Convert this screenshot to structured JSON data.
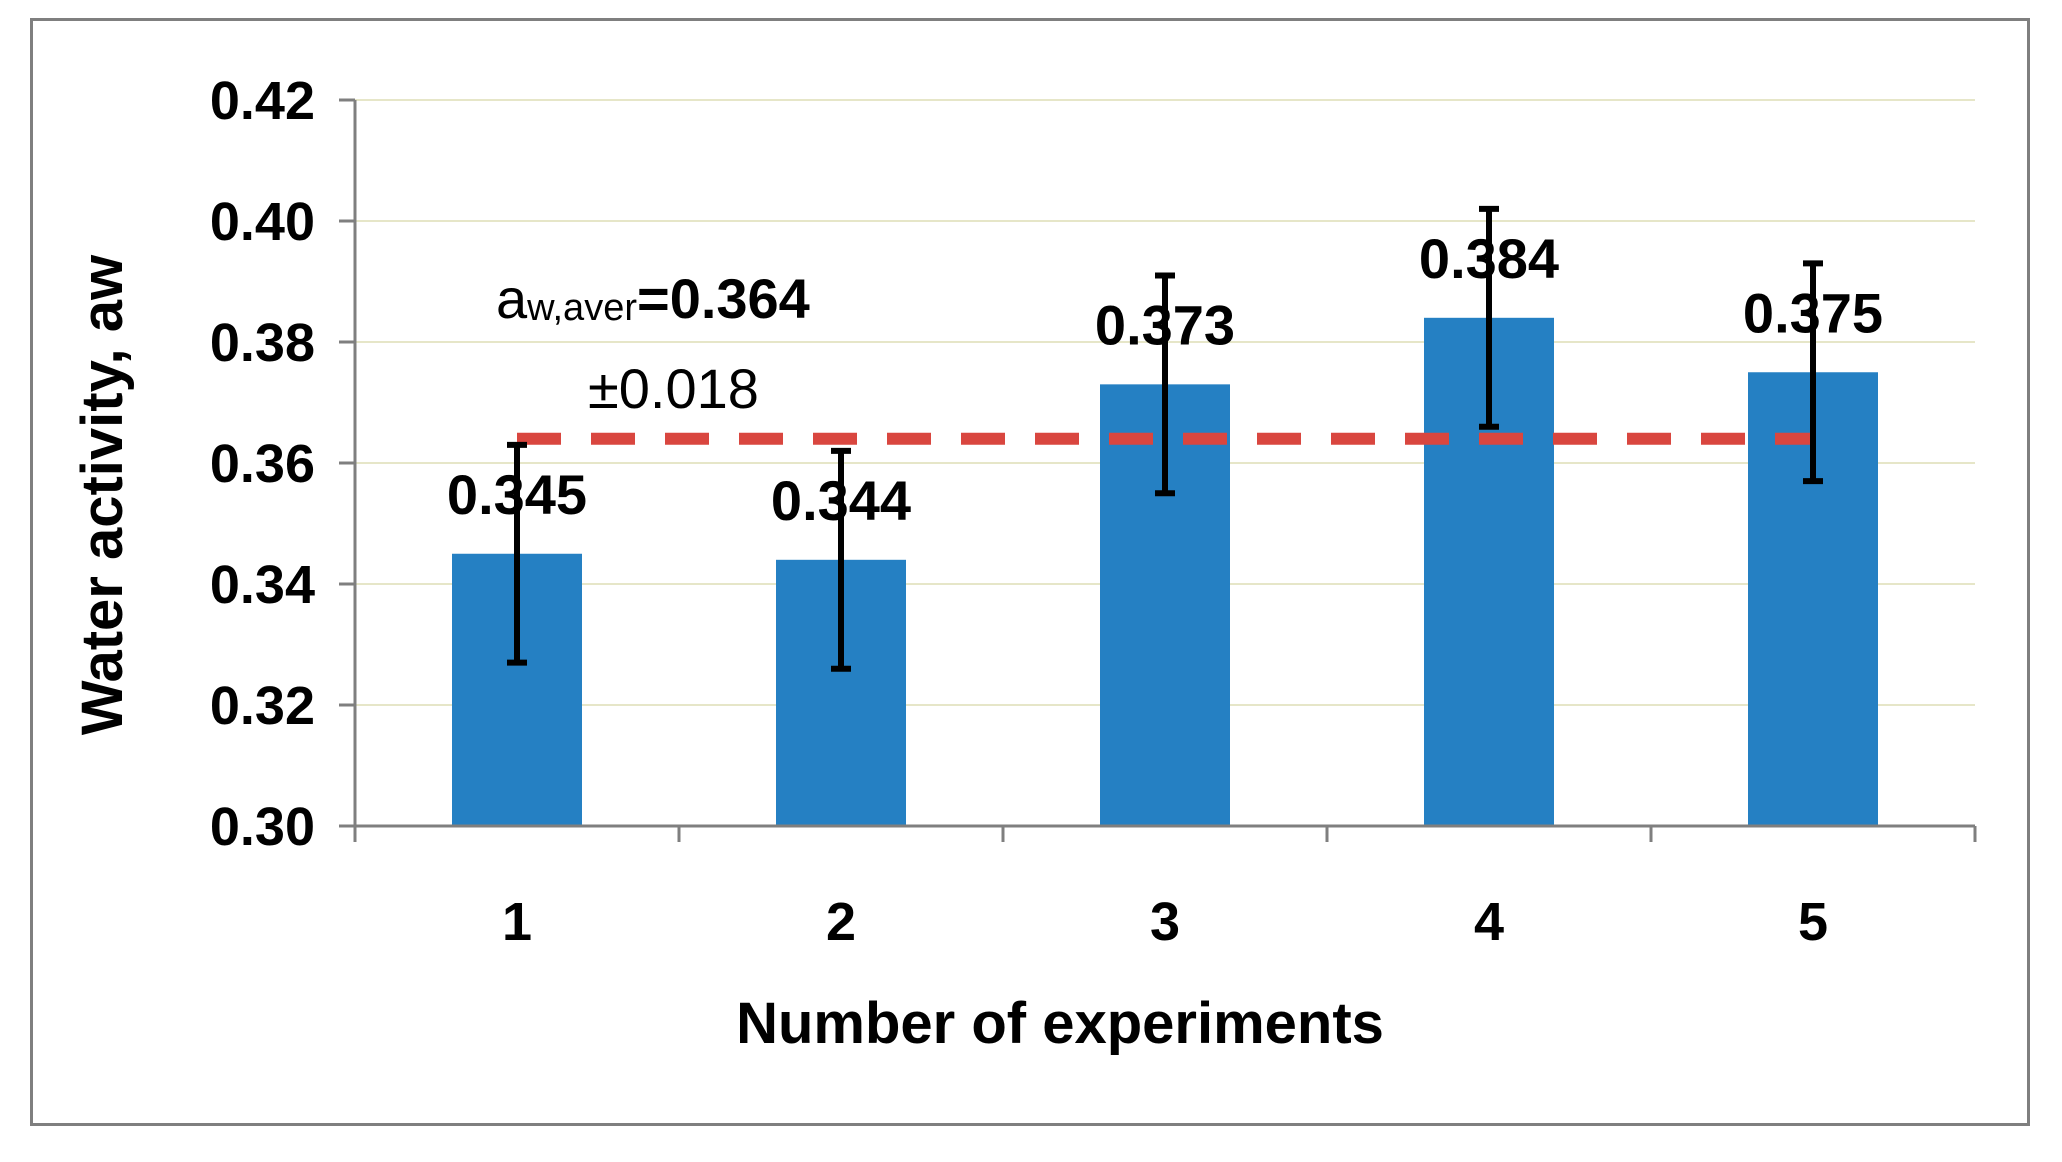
{
  "chart_data": {
    "type": "bar",
    "categories": [
      "1",
      "2",
      "3",
      "4",
      "5"
    ],
    "values": [
      0.345,
      0.344,
      0.373,
      0.384,
      0.375
    ],
    "value_labels": [
      "0.345",
      "0.344",
      "0.373",
      "0.384",
      "0.375"
    ],
    "error": 0.018,
    "ylim": [
      0.3,
      0.42
    ],
    "yticks": [
      0.3,
      0.32,
      0.34,
      0.36,
      0.38,
      0.4,
      0.42
    ],
    "ytick_labels": [
      "0.30",
      "0.32",
      "0.34",
      "0.36",
      "0.38",
      "0.40",
      "0.42"
    ],
    "xlabel": "Number of experiments",
    "ylabel": "Water activity, aw",
    "grid": true,
    "average_line": {
      "value": 0.364,
      "style": "dashed"
    },
    "annotation": {
      "symbol_main": "a",
      "symbol_sub": "w,aver",
      "equals_value": "=0.364",
      "deviation": "±0.018"
    },
    "colors": {
      "bar": "#2580c3",
      "avg_line": "#d9463f",
      "error_bar": "#000000",
      "grid": "#e6e6c8",
      "axis": "#7f7f7f"
    }
  }
}
